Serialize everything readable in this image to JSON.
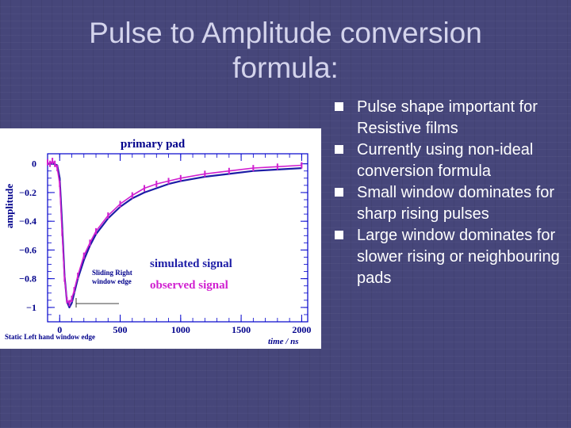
{
  "slide": {
    "title_line1": "Pulse to Amplitude conversion",
    "title_line2": "formula:",
    "bullets": [
      "Pulse shape important for Resistive films",
      "Currently using non-ideal conversion formula",
      "Small window dominates for sharp rising pulses",
      "Large window dominates for slower rising or neighbouring pads"
    ]
  },
  "colors": {
    "background": "#46467a",
    "title": "#d4d4ec",
    "simulated": "#1c1ca6",
    "observed": "#d020d0",
    "plot_frame": "#0000cc",
    "plot_labels": "#00008b"
  },
  "chart_data": {
    "type": "line",
    "title": "primary pad",
    "xlabel": "time / ns",
    "ylabel": "amplitude",
    "xlim": [
      -100,
      2050
    ],
    "ylim": [
      -1.1,
      0.07
    ],
    "x_ticks": [
      0,
      500,
      1000,
      1500,
      2000
    ],
    "x_tick_labels": [
      "0",
      "500",
      "1000",
      "1500",
      "2000"
    ],
    "y_ticks": [
      0,
      -0.2,
      -0.4,
      -0.6,
      -0.8,
      -1
    ],
    "y_tick_labels": [
      "0",
      "−0.2",
      "−0.4",
      "−0.6",
      "−0.8",
      "−1"
    ],
    "grid": false,
    "legend": {
      "simulated": "simulated signal",
      "observed": "observed signal"
    },
    "annotations": {
      "sliding_right_1": "Sliding Right",
      "sliding_right_2": "window edge",
      "static_left": "Static Left hand window edge"
    },
    "series": [
      {
        "name": "simulated signal",
        "x": [
          -100,
          -50,
          -20,
          0,
          20,
          40,
          60,
          80,
          100,
          120,
          150,
          200,
          250,
          300,
          400,
          500,
          600,
          700,
          800,
          900,
          1000,
          1200,
          1400,
          1600,
          1800,
          2000
        ],
        "y": [
          0,
          0,
          -0.01,
          -0.1,
          -0.42,
          -0.78,
          -0.96,
          -1.0,
          -0.97,
          -0.9,
          -0.8,
          -0.67,
          -0.57,
          -0.49,
          -0.38,
          -0.3,
          -0.24,
          -0.2,
          -0.17,
          -0.14,
          -0.12,
          -0.09,
          -0.07,
          -0.05,
          -0.04,
          -0.03
        ]
      },
      {
        "name": "observed signal",
        "x": [
          -100,
          -80,
          -60,
          -40,
          -20,
          0,
          20,
          40,
          60,
          80,
          100,
          120,
          150,
          200,
          250,
          300,
          400,
          500,
          600,
          700,
          800,
          900,
          1000,
          1200,
          1400,
          1600,
          1800,
          2000
        ],
        "y": [
          0.01,
          0.0,
          0.02,
          0.0,
          -0.03,
          -0.14,
          -0.48,
          -0.8,
          -0.95,
          -0.97,
          -0.94,
          -0.88,
          -0.78,
          -0.64,
          -0.55,
          -0.47,
          -0.36,
          -0.28,
          -0.22,
          -0.17,
          -0.14,
          -0.12,
          -0.1,
          -0.07,
          -0.05,
          -0.03,
          -0.02,
          -0.01
        ]
      }
    ]
  }
}
